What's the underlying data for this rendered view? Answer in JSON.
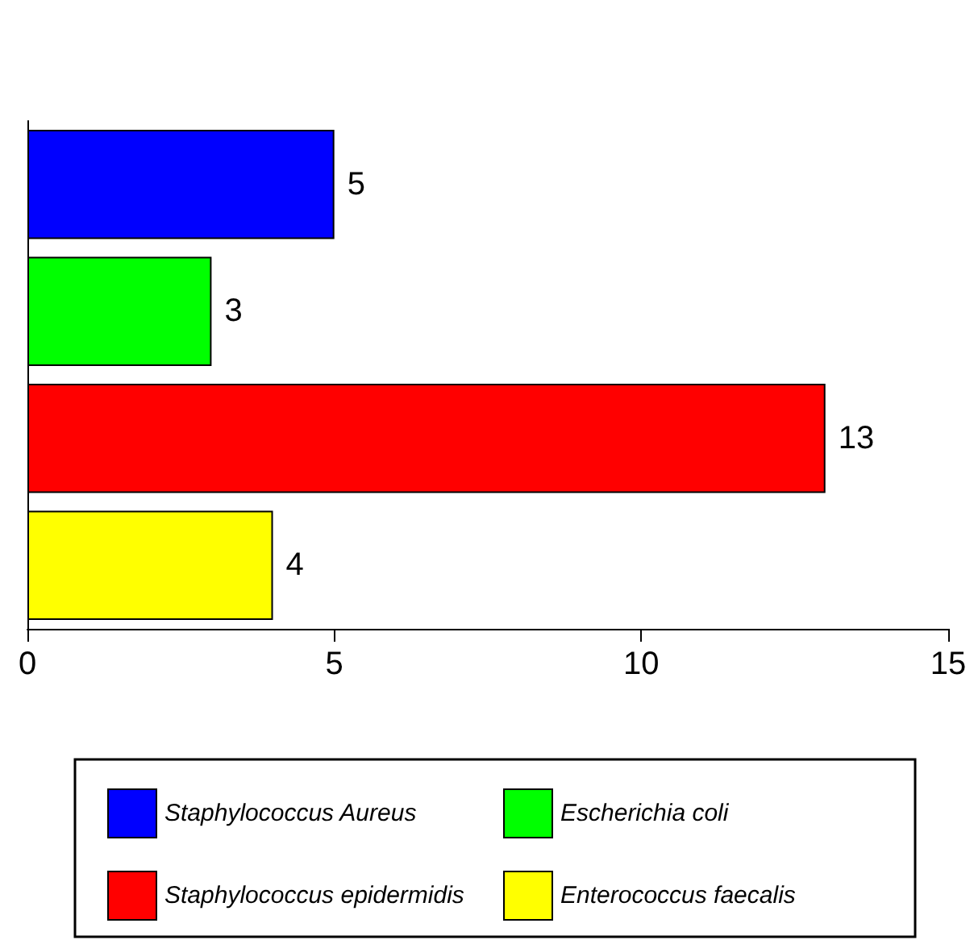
{
  "chart_data": {
    "type": "bar",
    "orientation": "horizontal",
    "categories": [
      null,
      null,
      null,
      null
    ],
    "series": [
      {
        "name": "Staphylococcus Aureus",
        "color": "#0000ff",
        "values": [
          5,
          null,
          null,
          null
        ]
      },
      {
        "name": "Escherichia coli",
        "color": "#00ff00",
        "values": [
          null,
          3,
          null,
          null
        ]
      },
      {
        "name": "Staphylococcus epidermidis",
        "color": "#ff0000",
        "values": [
          null,
          null,
          13,
          null
        ]
      },
      {
        "name": "Enterococcus faecalis",
        "color": "#ffff00",
        "values": [
          null,
          null,
          null,
          4
        ]
      }
    ],
    "xlim": [
      0,
      15
    ],
    "xticks": [
      0,
      5,
      10,
      15
    ],
    "data_labels": true,
    "legend": "bottom",
    "grid": false
  }
}
